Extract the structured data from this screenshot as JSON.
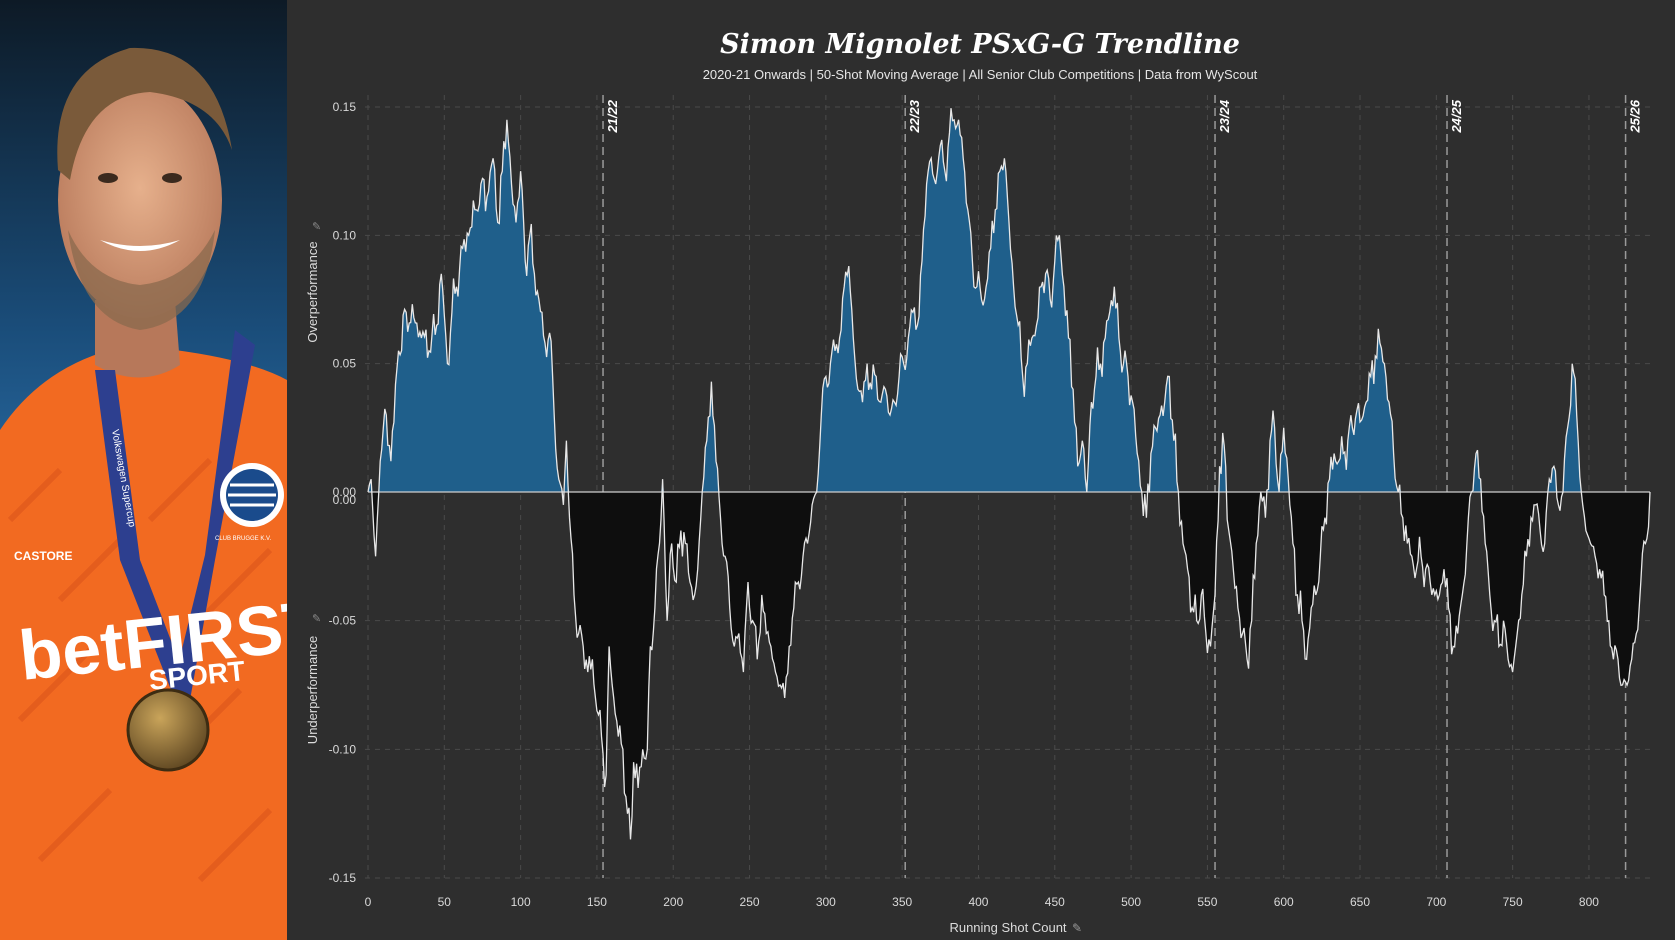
{
  "chart_data": {
    "type": "area",
    "title": "Simon Mignolet PSxG-G Trendline",
    "subtitle": "2020-21 Onwards | 50-Shot Moving Average | All Senior Club  Competitions | Data from WyScout",
    "xlabel": "Running Shot Count",
    "ylabel_top": "Overperformance",
    "ylabel_bottom": "Underperformance",
    "xlim": [
      0,
      840
    ],
    "ylim": [
      -0.15,
      0.15
    ],
    "x_ticks": [
      0,
      50,
      100,
      150,
      200,
      250,
      300,
      350,
      400,
      450,
      500,
      550,
      600,
      650,
      700,
      750,
      800
    ],
    "y_ticks_upper": [
      "0.15",
      "0.10",
      "0.05",
      "0.00"
    ],
    "y_ticks_lower": [
      "0.00",
      "-0.05",
      "-0.10",
      "-0.15"
    ],
    "seasons": [
      {
        "label": "21/22",
        "x": 154
      },
      {
        "label": "22/23",
        "x": 352
      },
      {
        "label": "23/24",
        "x": 555
      },
      {
        "label": "24/25",
        "x": 707
      },
      {
        "label": "25/26",
        "x": 824
      }
    ],
    "colors": {
      "positive": "#1f5f8b",
      "negative": "#0e0e0e",
      "line": "#e8e8e8",
      "background": "#2e2e2e",
      "grid": "#4a4a4a"
    },
    "anchor_points": [
      [
        0,
        0
      ],
      [
        2,
        0.005
      ],
      [
        5,
        -0.025
      ],
      [
        8,
        0.012
      ],
      [
        10,
        0.025
      ],
      [
        12,
        0.03
      ],
      [
        15,
        0.012
      ],
      [
        20,
        0.055
      ],
      [
        25,
        0.07
      ],
      [
        30,
        0.068
      ],
      [
        35,
        0.06
      ],
      [
        40,
        0.055
      ],
      [
        45,
        0.065
      ],
      [
        48,
        0.085
      ],
      [
        52,
        0.05
      ],
      [
        55,
        0.07
      ],
      [
        58,
        0.08
      ],
      [
        62,
        0.095
      ],
      [
        66,
        0.1
      ],
      [
        70,
        0.11
      ],
      [
        74,
        0.12
      ],
      [
        78,
        0.115
      ],
      [
        82,
        0.13
      ],
      [
        85,
        0.105
      ],
      [
        88,
        0.125
      ],
      [
        91,
        0.145
      ],
      [
        94,
        0.12
      ],
      [
        97,
        0.105
      ],
      [
        100,
        0.125
      ],
      [
        103,
        0.09
      ],
      [
        106,
        0.1
      ],
      [
        109,
        0.085
      ],
      [
        112,
        0.075
      ],
      [
        116,
        0.058
      ],
      [
        119,
        0.062
      ],
      [
        122,
        0.03
      ],
      [
        125,
        0.005
      ],
      [
        128,
        -0.005
      ],
      [
        130,
        0.02
      ],
      [
        132,
        -0.01
      ],
      [
        135,
        -0.04
      ],
      [
        138,
        -0.055
      ],
      [
        141,
        -0.06
      ],
      [
        144,
        -0.07
      ],
      [
        147,
        -0.065
      ],
      [
        150,
        -0.085
      ],
      [
        153,
        -0.095
      ],
      [
        156,
        -0.11
      ],
      [
        158,
        -0.06
      ],
      [
        161,
        -0.08
      ],
      [
        164,
        -0.095
      ],
      [
        167,
        -0.1
      ],
      [
        170,
        -0.125
      ],
      [
        172,
        -0.135
      ],
      [
        174,
        -0.105
      ],
      [
        177,
        -0.115
      ],
      [
        180,
        -0.1
      ],
      [
        183,
        -0.1
      ],
      [
        185,
        -0.06
      ],
      [
        188,
        -0.045
      ],
      [
        191,
        -0.02
      ],
      [
        193,
        0.005
      ],
      [
        196,
        -0.05
      ],
      [
        199,
        -0.02
      ],
      [
        202,
        -0.035
      ],
      [
        205,
        -0.015
      ],
      [
        208,
        -0.02
      ],
      [
        211,
        -0.035
      ],
      [
        214,
        -0.04
      ],
      [
        216,
        -0.03
      ],
      [
        219,
        0.0
      ],
      [
        222,
        0.02
      ],
      [
        225,
        0.043
      ],
      [
        228,
        0.012
      ],
      [
        231,
        -0.01
      ],
      [
        234,
        -0.025
      ],
      [
        237,
        -0.045
      ],
      [
        240,
        -0.06
      ],
      [
        243,
        -0.055
      ],
      [
        246,
        -0.07
      ],
      [
        249,
        -0.035
      ],
      [
        252,
        -0.05
      ],
      [
        255,
        -0.065
      ],
      [
        258,
        -0.04
      ],
      [
        261,
        -0.055
      ],
      [
        264,
        -0.06
      ],
      [
        267,
        -0.07
      ],
      [
        270,
        -0.075
      ],
      [
        273,
        -0.08
      ],
      [
        276,
        -0.06
      ],
      [
        279,
        -0.045
      ],
      [
        282,
        -0.035
      ],
      [
        285,
        -0.025
      ],
      [
        288,
        -0.02
      ],
      [
        291,
        -0.005
      ],
      [
        294,
        0.0
      ],
      [
        297,
        0.03
      ],
      [
        300,
        0.045
      ],
      [
        303,
        0.05
      ],
      [
        306,
        0.055
      ],
      [
        309,
        0.06
      ],
      [
        312,
        0.08
      ],
      [
        315,
        0.088
      ],
      [
        318,
        0.06
      ],
      [
        321,
        0.04
      ],
      [
        324,
        0.035
      ],
      [
        327,
        0.05
      ],
      [
        330,
        0.04
      ],
      [
        333,
        0.045
      ],
      [
        336,
        0.035
      ],
      [
        339,
        0.04
      ],
      [
        342,
        0.03
      ],
      [
        345,
        0.035
      ],
      [
        348,
        0.045
      ],
      [
        351,
        0.05
      ],
      [
        354,
        0.06
      ],
      [
        357,
        0.07
      ],
      [
        360,
        0.065
      ],
      [
        363,
        0.09
      ],
      [
        366,
        0.12
      ],
      [
        369,
        0.13
      ],
      [
        372,
        0.12
      ],
      [
        375,
        0.135
      ],
      [
        378,
        0.125
      ],
      [
        381,
        0.14
      ],
      [
        384,
        0.145
      ],
      [
        387,
        0.145
      ],
      [
        390,
        0.13
      ],
      [
        393,
        0.11
      ],
      [
        396,
        0.09
      ],
      [
        399,
        0.08
      ],
      [
        402,
        0.075
      ],
      [
        405,
        0.08
      ],
      [
        408,
        0.095
      ],
      [
        411,
        0.11
      ],
      [
        414,
        0.125
      ],
      [
        417,
        0.13
      ],
      [
        420,
        0.105
      ],
      [
        423,
        0.08
      ],
      [
        426,
        0.065
      ],
      [
        429,
        0.045
      ],
      [
        432,
        0.05
      ],
      [
        435,
        0.06
      ],
      [
        438,
        0.065
      ],
      [
        441,
        0.08
      ],
      [
        444,
        0.085
      ],
      [
        447,
        0.075
      ],
      [
        450,
        0.09
      ],
      [
        453,
        0.1
      ],
      [
        456,
        0.08
      ],
      [
        459,
        0.06
      ],
      [
        462,
        0.04
      ],
      [
        465,
        0.01
      ],
      [
        468,
        0.02
      ],
      [
        471,
        0.0
      ],
      [
        474,
        0.035
      ],
      [
        477,
        0.045
      ],
      [
        480,
        0.05
      ],
      [
        483,
        0.06
      ],
      [
        486,
        0.07
      ],
      [
        489,
        0.08
      ],
      [
        492,
        0.06
      ],
      [
        495,
        0.05
      ],
      [
        498,
        0.045
      ],
      [
        501,
        0.035
      ],
      [
        504,
        0.015
      ],
      [
        507,
        0.0
      ],
      [
        510,
        -0.01
      ],
      [
        513,
        0.015
      ],
      [
        516,
        0.025
      ],
      [
        519,
        0.03
      ],
      [
        522,
        0.035
      ],
      [
        525,
        0.045
      ],
      [
        528,
        0.02
      ],
      [
        531,
        0.0
      ],
      [
        534,
        -0.02
      ],
      [
        537,
        -0.03
      ],
      [
        540,
        -0.045
      ],
      [
        543,
        -0.05
      ],
      [
        546,
        -0.04
      ],
      [
        549,
        -0.055
      ],
      [
        552,
        -0.06
      ],
      [
        555,
        -0.04
      ],
      [
        558,
        0.01
      ],
      [
        561,
        0.018
      ],
      [
        564,
        -0.015
      ],
      [
        567,
        -0.03
      ],
      [
        570,
        -0.045
      ],
      [
        573,
        -0.055
      ],
      [
        576,
        -0.065
      ],
      [
        579,
        -0.05
      ],
      [
        582,
        -0.02
      ],
      [
        585,
        0.0
      ],
      [
        588,
        -0.01
      ],
      [
        591,
        0.02
      ],
      [
        594,
        0.025
      ],
      [
        597,
        0.0
      ],
      [
        600,
        0.025
      ],
      [
        603,
        0.005
      ],
      [
        606,
        -0.02
      ],
      [
        609,
        -0.04
      ],
      [
        612,
        -0.05
      ],
      [
        615,
        -0.065
      ],
      [
        618,
        -0.045
      ],
      [
        621,
        -0.04
      ],
      [
        624,
        -0.025
      ],
      [
        627,
        -0.01
      ],
      [
        630,
        0.005
      ],
      [
        633,
        0.015
      ],
      [
        636,
        0.012
      ],
      [
        639,
        0.015
      ],
      [
        642,
        0.02
      ],
      [
        645,
        0.025
      ],
      [
        648,
        0.032
      ],
      [
        651,
        0.028
      ],
      [
        654,
        0.035
      ],
      [
        657,
        0.045
      ],
      [
        660,
        0.053
      ],
      [
        663,
        0.058
      ],
      [
        666,
        0.05
      ],
      [
        669,
        0.035
      ],
      [
        672,
        0.015
      ],
      [
        675,
        0.0
      ],
      [
        678,
        -0.01
      ],
      [
        681,
        -0.02
      ],
      [
        684,
        -0.025
      ],
      [
        687,
        -0.03
      ],
      [
        690,
        -0.025
      ],
      [
        693,
        -0.03
      ],
      [
        696,
        -0.035
      ],
      [
        699,
        -0.04
      ],
      [
        702,
        -0.04
      ],
      [
        705,
        -0.03
      ],
      [
        708,
        -0.045
      ],
      [
        711,
        -0.06
      ],
      [
        714,
        -0.055
      ],
      [
        717,
        -0.04
      ],
      [
        720,
        -0.02
      ],
      [
        723,
        0.0
      ],
      [
        726,
        0.015
      ],
      [
        729,
        0.005
      ],
      [
        732,
        -0.02
      ],
      [
        735,
        -0.04
      ],
      [
        738,
        -0.05
      ],
      [
        741,
        -0.06
      ],
      [
        744,
        -0.05
      ],
      [
        747,
        -0.065
      ],
      [
        750,
        -0.07
      ],
      [
        753,
        -0.055
      ],
      [
        756,
        -0.04
      ],
      [
        759,
        -0.025
      ],
      [
        762,
        -0.01
      ],
      [
        765,
        -0.005
      ],
      [
        768,
        -0.015
      ],
      [
        771,
        -0.02
      ],
      [
        774,
        0.005
      ],
      [
        777,
        0.01
      ],
      [
        780,
        -0.005
      ],
      [
        783,
        0.0
      ],
      [
        786,
        0.025
      ],
      [
        789,
        0.05
      ],
      [
        792,
        0.03
      ],
      [
        795,
        0.0
      ],
      [
        798,
        -0.015
      ],
      [
        801,
        -0.02
      ],
      [
        804,
        -0.025
      ],
      [
        807,
        -0.03
      ],
      [
        810,
        -0.04
      ],
      [
        813,
        -0.05
      ],
      [
        816,
        -0.065
      ],
      [
        819,
        -0.065
      ],
      [
        822,
        -0.075
      ],
      [
        825,
        -0.075
      ],
      [
        828,
        -0.065
      ],
      [
        831,
        -0.055
      ],
      [
        834,
        -0.035
      ],
      [
        837,
        -0.02
      ],
      [
        840,
        0.0
      ]
    ]
  },
  "photo": {
    "shirt_logo": "betFIRST",
    "shirt_sub": "SPORT",
    "kit_brand": "CASTORE",
    "crest": "CLUB BRUGGE K.V.",
    "lanyard": "Volkswagen Supercup",
    "colors": {
      "shirt": "#f26a21",
      "lanyard": "#2d3f8f",
      "medal": "#8a6a2e",
      "skin": "#d9a07c"
    }
  }
}
